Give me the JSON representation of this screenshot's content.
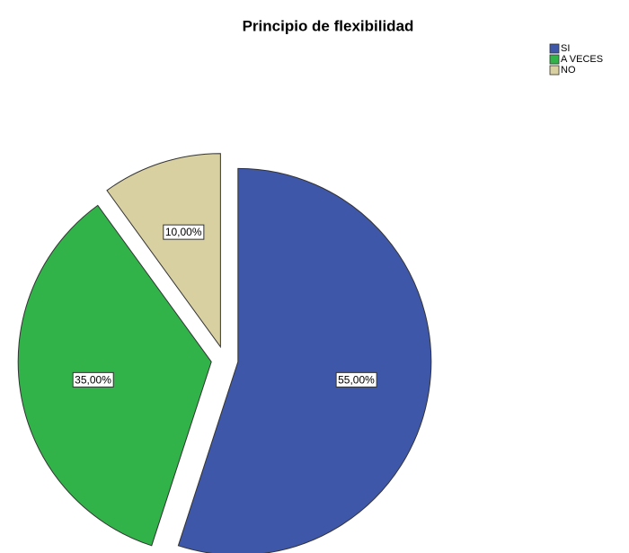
{
  "chart_data": {
    "type": "pie",
    "title": "Principio de flexibilidad",
    "categories": [
      "SI",
      "A VECES",
      "NO"
    ],
    "values": [
      55,
      35,
      10
    ],
    "value_labels": [
      "55,00%",
      "35,00%",
      "10,00%"
    ],
    "colors": [
      "#3f57a9",
      "#32b34a",
      "#d8d0a0"
    ],
    "legend": "top-right"
  }
}
